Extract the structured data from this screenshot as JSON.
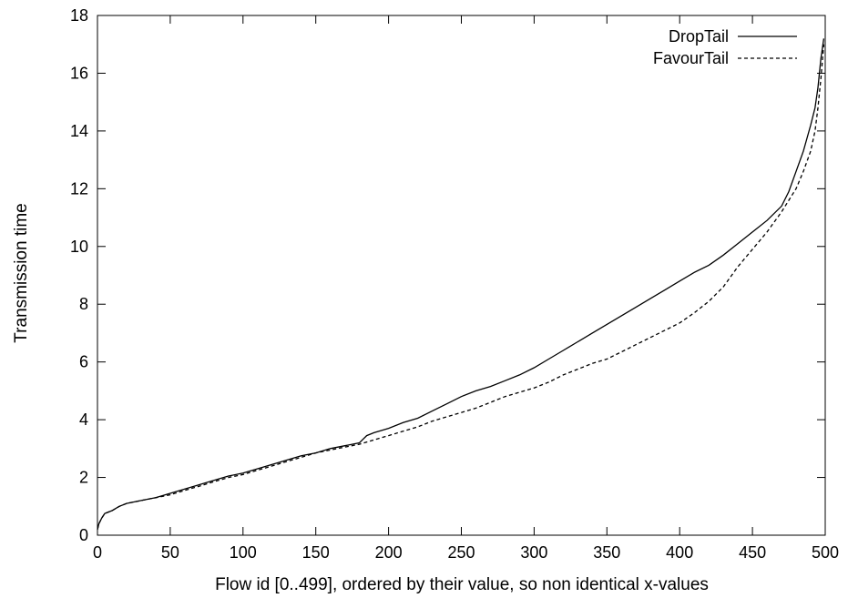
{
  "chart_data": {
    "type": "line",
    "title": "",
    "xlabel": "Flow id [0..499], ordered by their value, so non identical x-values",
    "ylabel": "Transmission time",
    "xlim": [
      0,
      500
    ],
    "ylim": [
      0,
      18
    ],
    "xticks": [
      0,
      50,
      100,
      150,
      200,
      250,
      300,
      350,
      400,
      450,
      500
    ],
    "yticks": [
      0,
      2,
      4,
      6,
      8,
      10,
      12,
      14,
      16,
      18
    ],
    "grid": false,
    "legend_position": "top-right",
    "series": [
      {
        "name": "DropTail",
        "style": "solid",
        "color": "#000000",
        "x": [
          0,
          1,
          3,
          5,
          10,
          15,
          20,
          30,
          40,
          50,
          60,
          70,
          80,
          90,
          100,
          110,
          120,
          130,
          140,
          150,
          160,
          170,
          180,
          182,
          185,
          190,
          200,
          210,
          220,
          230,
          240,
          250,
          260,
          270,
          280,
          290,
          300,
          310,
          320,
          330,
          340,
          350,
          360,
          370,
          380,
          390,
          400,
          410,
          420,
          430,
          440,
          450,
          460,
          470,
          475,
          480,
          485,
          490,
          493,
          495,
          497,
          499
        ],
        "y": [
          0.2,
          0.4,
          0.6,
          0.75,
          0.85,
          1.0,
          1.1,
          1.2,
          1.3,
          1.45,
          1.6,
          1.75,
          1.9,
          2.05,
          2.15,
          2.3,
          2.45,
          2.6,
          2.75,
          2.85,
          3.0,
          3.1,
          3.2,
          3.3,
          3.45,
          3.55,
          3.7,
          3.9,
          4.05,
          4.3,
          4.55,
          4.8,
          5.0,
          5.15,
          5.35,
          5.55,
          5.8,
          6.1,
          6.4,
          6.7,
          7.0,
          7.3,
          7.6,
          7.9,
          8.2,
          8.5,
          8.8,
          9.1,
          9.35,
          9.7,
          10.1,
          10.5,
          10.9,
          11.4,
          11.9,
          12.6,
          13.3,
          14.2,
          14.8,
          15.5,
          16.5,
          17.2
        ]
      },
      {
        "name": "FavourTail",
        "style": "dashed",
        "color": "#000000",
        "x": [
          0,
          1,
          3,
          5,
          10,
          15,
          20,
          30,
          40,
          50,
          60,
          70,
          80,
          90,
          100,
          110,
          120,
          130,
          140,
          150,
          160,
          170,
          180,
          190,
          200,
          210,
          220,
          230,
          240,
          250,
          260,
          270,
          280,
          290,
          300,
          310,
          320,
          330,
          340,
          350,
          360,
          370,
          380,
          390,
          400,
          410,
          420,
          430,
          440,
          450,
          460,
          470,
          480,
          485,
          490,
          493,
          495,
          497,
          499
        ],
        "y": [
          0.2,
          0.4,
          0.6,
          0.75,
          0.85,
          1.0,
          1.1,
          1.2,
          1.3,
          1.4,
          1.55,
          1.7,
          1.85,
          2.0,
          2.1,
          2.25,
          2.4,
          2.55,
          2.7,
          2.85,
          2.95,
          3.05,
          3.15,
          3.3,
          3.45,
          3.6,
          3.75,
          3.95,
          4.1,
          4.25,
          4.4,
          4.6,
          4.8,
          4.95,
          5.1,
          5.3,
          5.55,
          5.75,
          5.95,
          6.1,
          6.35,
          6.6,
          6.85,
          7.1,
          7.35,
          7.7,
          8.1,
          8.6,
          9.3,
          9.9,
          10.5,
          11.2,
          12.0,
          12.6,
          13.3,
          14.0,
          14.8,
          15.8,
          17.0
        ]
      }
    ]
  }
}
